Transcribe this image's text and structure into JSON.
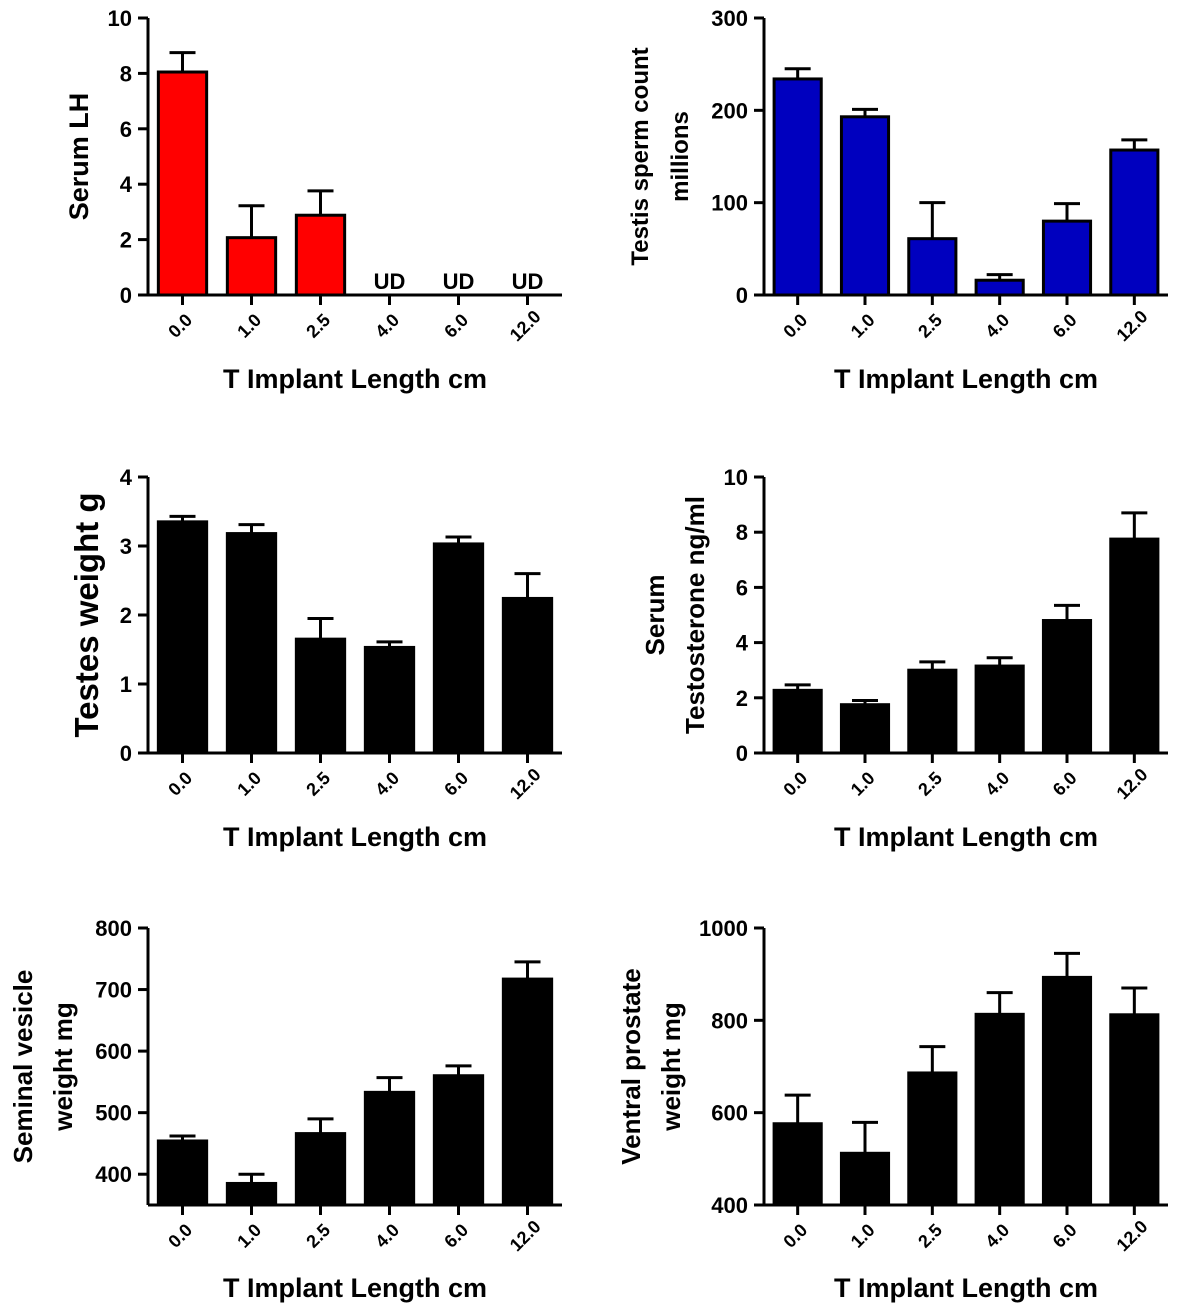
{
  "chart_data": [
    {
      "type": "bar",
      "categories": [
        "0.0",
        "1.0",
        "2.5",
        "4.0",
        "6.0",
        "12.0"
      ],
      "values": [
        8.05,
        2.07,
        2.88,
        null,
        null,
        null
      ],
      "errors": [
        0.7,
        1.15,
        0.88,
        null,
        null,
        null
      ],
      "value_labels": [
        null,
        null,
        null,
        "UD",
        "UD",
        "UD"
      ],
      "ylabel": [
        "Serum LH"
      ],
      "xlabel": "T Implant Length cm",
      "ylim": [
        0,
        10
      ],
      "yticks": [
        0,
        2,
        4,
        6,
        8,
        10
      ],
      "color": "#ff0000"
    },
    {
      "type": "bar",
      "categories": [
        "0.0",
        "1.0",
        "2.5",
        "4.0",
        "6.0",
        "12.0"
      ],
      "values": [
        234,
        193,
        61,
        16,
        80,
        157
      ],
      "errors": [
        11,
        8,
        39,
        6,
        19,
        11
      ],
      "ylabel": [
        "Testis sperm count",
        "millions"
      ],
      "xlabel": "T Implant Length cm",
      "ylim": [
        0,
        300
      ],
      "yticks": [
        0,
        100,
        200,
        300
      ],
      "color": "#0000bf"
    },
    {
      "type": "bar",
      "categories": [
        "0.0",
        "1.0",
        "2.5",
        "4.0",
        "6.0",
        "12.0"
      ],
      "values": [
        3.35,
        3.18,
        1.65,
        1.53,
        3.03,
        2.24
      ],
      "errors": [
        0.08,
        0.13,
        0.3,
        0.08,
        0.1,
        0.36
      ],
      "ylabel": [
        "Testes weight g"
      ],
      "xlabel": "T Implant Length cm",
      "ylim": [
        0,
        4
      ],
      "yticks": [
        0,
        1,
        2,
        3,
        4
      ],
      "color": "#000000"
    },
    {
      "type": "bar",
      "categories": [
        "0.0",
        "1.0",
        "2.5",
        "4.0",
        "6.0",
        "12.0"
      ],
      "values": [
        2.27,
        1.75,
        3.0,
        3.15,
        4.8,
        7.75
      ],
      "errors": [
        0.2,
        0.15,
        0.3,
        0.3,
        0.55,
        0.95
      ],
      "ylabel": [
        "Serum",
        "Testosterone ng/ml"
      ],
      "xlabel": "T Implant Length cm",
      "ylim": [
        0,
        10
      ],
      "yticks": [
        0,
        2,
        4,
        6,
        8,
        10
      ],
      "color": "#000000"
    },
    {
      "type": "bar",
      "categories": [
        "0.0",
        "1.0",
        "2.5",
        "4.0",
        "6.0",
        "12.0"
      ],
      "values": [
        454,
        385,
        466,
        533,
        560,
        717
      ],
      "errors": [
        8,
        15,
        24,
        24,
        16,
        28
      ],
      "ylabel": [
        "Seminal vesicle",
        "weight mg"
      ],
      "xlabel": "T Implant Length cm",
      "ylim": [
        350,
        800
      ],
      "yticks": [
        400,
        500,
        600,
        700,
        800
      ],
      "color": "#000000"
    },
    {
      "type": "bar",
      "categories": [
        "0.0",
        "1.0",
        "2.5",
        "4.0",
        "6.0",
        "12.0"
      ],
      "values": [
        576,
        512,
        686,
        813,
        893,
        812
      ],
      "errors": [
        62,
        67,
        57,
        47,
        52,
        58
      ],
      "ylabel": [
        "Ventral prostate",
        "weight mg"
      ],
      "xlabel": "T Implant Length cm",
      "ylim": [
        400,
        1000
      ],
      "yticks": [
        400,
        600,
        800,
        1000
      ],
      "color": "#000000"
    }
  ]
}
